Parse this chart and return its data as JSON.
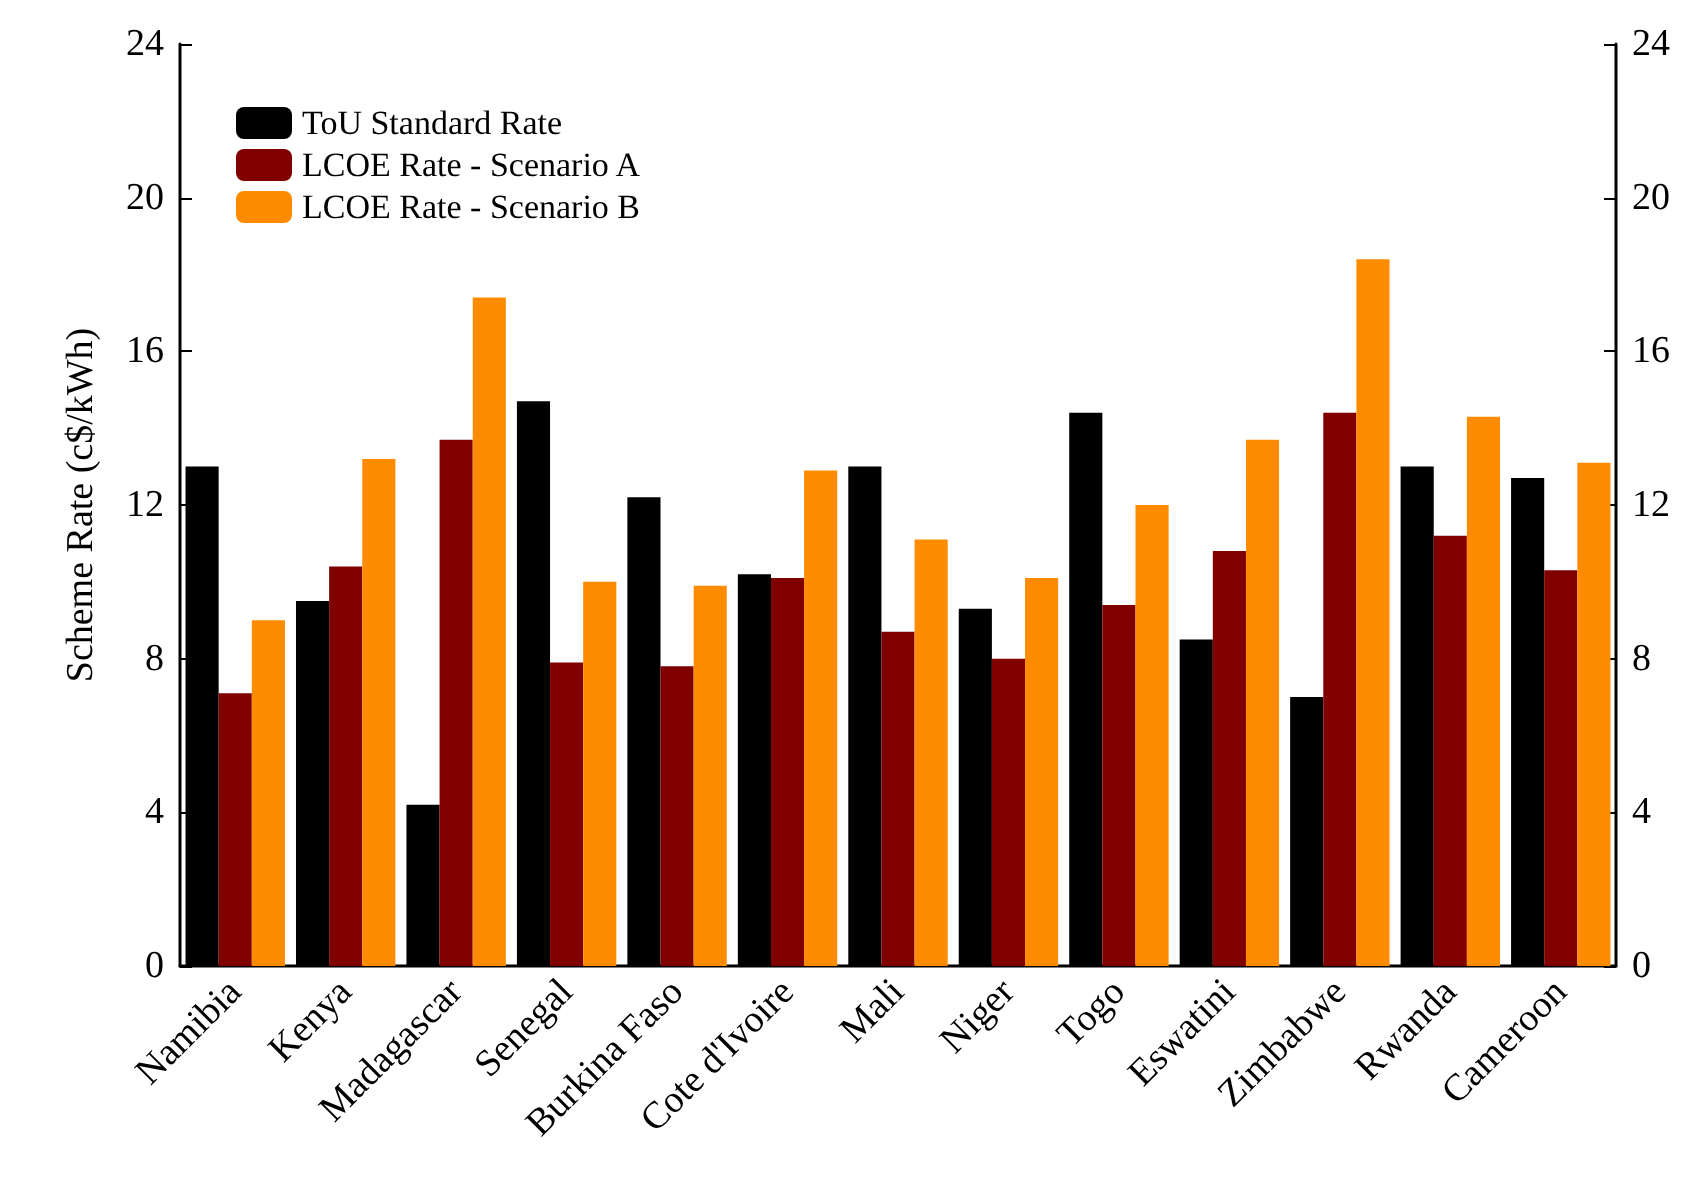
{
  "chart_data": {
    "type": "bar",
    "ylabel": "Scheme Rate (c$/kWh)",
    "categories": [
      "Namibia",
      "Kenya",
      "Madagascar",
      "Senegal",
      "Burkina Faso",
      "Cote d'Ivoire",
      "Mali",
      "Niger",
      "Togo",
      "Eswatini",
      "Zimbabwe",
      "Rwanda",
      "Cameroon"
    ],
    "series": [
      {
        "name": "ToU Standard Rate",
        "color": "#000000",
        "values": [
          13.0,
          9.5,
          4.2,
          14.7,
          12.2,
          10.2,
          13.0,
          9.3,
          14.4,
          8.5,
          7.0,
          13.0,
          12.7
        ]
      },
      {
        "name": "LCOE Rate - Scenario A",
        "color": "#800000",
        "values": [
          7.1,
          10.4,
          13.7,
          7.9,
          7.8,
          10.1,
          8.7,
          8.0,
          9.4,
          10.8,
          14.4,
          11.2,
          10.3
        ]
      },
      {
        "name": "LCOE Rate - Scenario B",
        "color": "#ff8c00",
        "values": [
          9.0,
          13.2,
          17.4,
          10.0,
          9.9,
          12.9,
          11.1,
          10.1,
          12.0,
          13.7,
          18.4,
          14.3,
          13.1
        ]
      }
    ],
    "ylim": [
      0,
      24
    ],
    "yticks": [
      0,
      4,
      8,
      12,
      16,
      20,
      24
    ],
    "y2lim": [
      0,
      24
    ],
    "y2ticks": [
      0,
      4,
      8,
      12,
      16,
      20,
      24
    ],
    "grid": false,
    "legend": "top left"
  }
}
